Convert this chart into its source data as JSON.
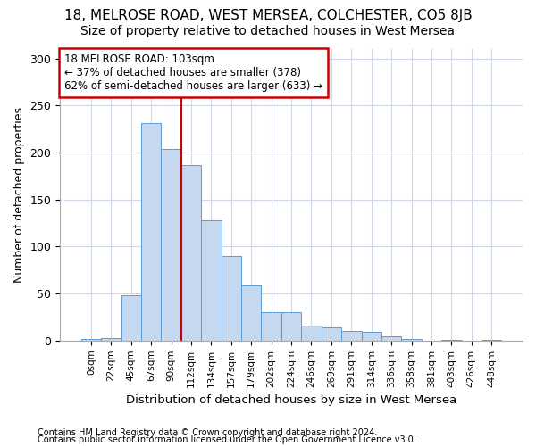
{
  "title1": "18, MELROSE ROAD, WEST MERSEA, COLCHESTER, CO5 8JB",
  "title2": "Size of property relative to detached houses in West Mersea",
  "xlabel": "Distribution of detached houses by size in West Mersea",
  "ylabel": "Number of detached properties",
  "footnote1": "Contains HM Land Registry data © Crown copyright and database right 2024.",
  "footnote2": "Contains public sector information licensed under the Open Government Licence v3.0.",
  "bar_labels": [
    "0sqm",
    "22sqm",
    "45sqm",
    "67sqm",
    "90sqm",
    "112sqm",
    "134sqm",
    "157sqm",
    "179sqm",
    "202sqm",
    "224sqm",
    "246sqm",
    "269sqm",
    "291sqm",
    "314sqm",
    "336sqm",
    "358sqm",
    "381sqm",
    "403sqm",
    "426sqm",
    "448sqm"
  ],
  "bar_values": [
    2,
    3,
    48,
    231,
    204,
    187,
    128,
    90,
    59,
    30,
    30,
    16,
    14,
    10,
    9,
    5,
    2,
    0,
    1,
    0,
    1
  ],
  "bar_color": "#c5d8f0",
  "bar_edge_color": "#5b9bd5",
  "vline_x": 4.5,
  "vline_color": "#cc0000",
  "annotation_text": "18 MELROSE ROAD: 103sqm\n← 37% of detached houses are smaller (378)\n62% of semi-detached houses are larger (633) →",
  "annotation_box_color": "#ffffff",
  "annotation_box_edge": "#cc0000",
  "ylim": [
    0,
    310
  ],
  "yticks": [
    0,
    50,
    100,
    150,
    200,
    250,
    300
  ],
  "grid_color": "#d0d8e8",
  "bg_color": "#ffffff",
  "title1_fontsize": 11,
  "title2_fontsize": 10
}
